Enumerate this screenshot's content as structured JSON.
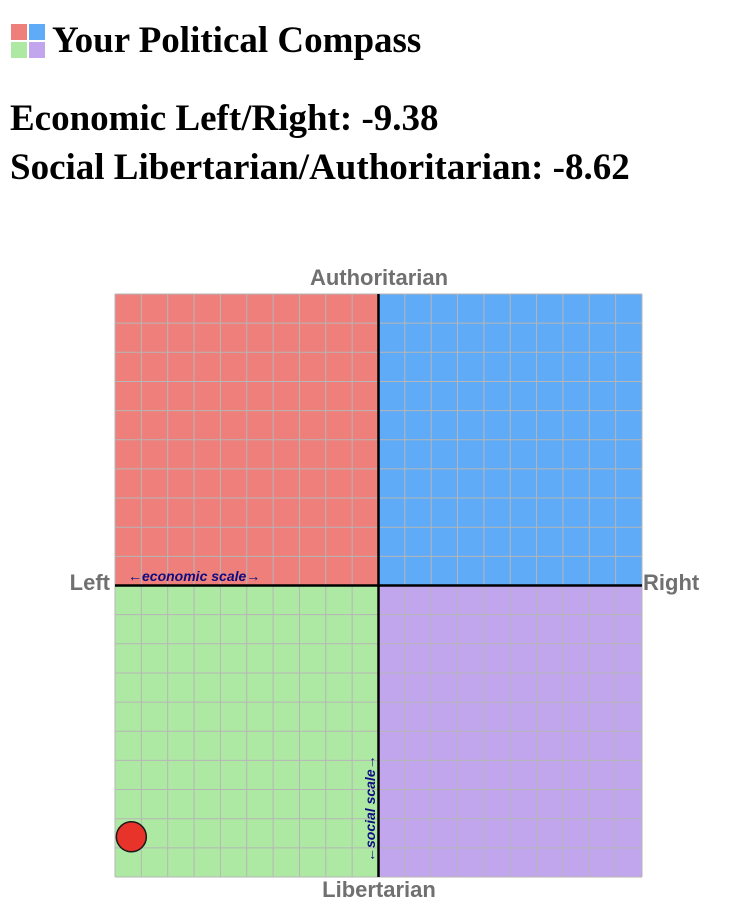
{
  "header": {
    "title": "Your Political Compass",
    "logo_icon": "political-compass-logo-icon"
  },
  "scores": {
    "economic_label": "Economic Left/Right: ",
    "economic_value": "-9.38",
    "social_label": "Social Libertarian/Authoritarian: ",
    "social_value": "-8.62"
  },
  "chart_data": {
    "type": "scatter",
    "xlim": [
      -10,
      10
    ],
    "ylim": [
      -10,
      10
    ],
    "grid": true,
    "grid_divisions": 20,
    "axis_labels": {
      "top": "Authoritarian",
      "bottom": "Libertarian",
      "left": "Left",
      "right": "Right"
    },
    "scale_labels": {
      "economic": "←economic scale→",
      "social": "←social scale→"
    },
    "quadrant_colors": {
      "authoritarian_left": "#ef7f7b",
      "authoritarian_right": "#5fabf7",
      "libertarian_left": "#aee9a3",
      "libertarian_right": "#c1a6ee"
    },
    "grid_color": "#b6b6b6",
    "point": {
      "x": -9.38,
      "y": -8.62,
      "color": "#e8332a"
    }
  }
}
